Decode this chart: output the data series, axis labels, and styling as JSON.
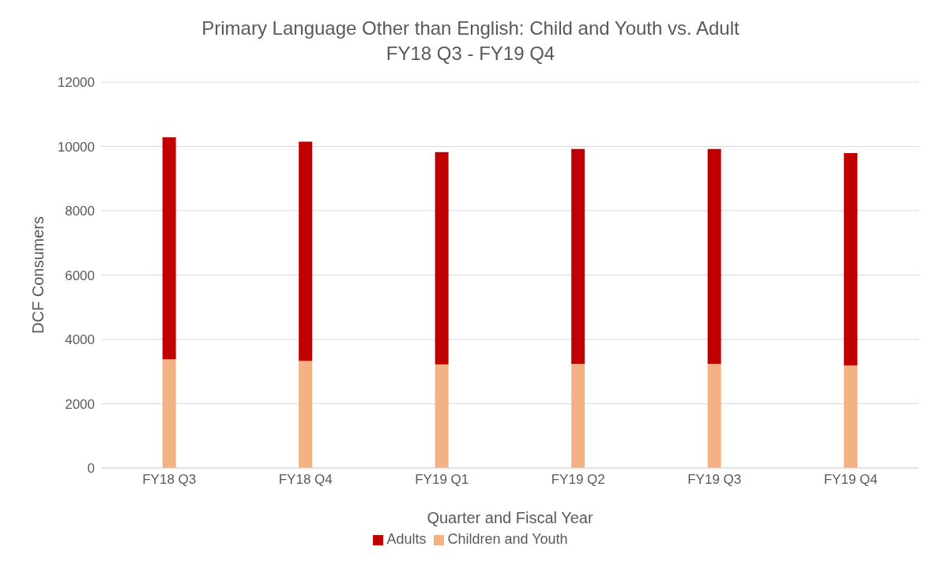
{
  "chart_data": {
    "type": "bar",
    "title": "Primary Language Other than English: Child and Youth vs. Adult",
    "subtitle": "FY18 Q3 - FY19 Q4",
    "xlabel": "Quarter and Fiscal Year",
    "ylabel": "DCF Consumers",
    "categories": [
      "FY18 Q3",
      "FY18 Q4",
      "FY19 Q1",
      "FY19 Q2",
      "FY19 Q3",
      "FY19 Q4"
    ],
    "series": [
      {
        "name": "Children and Youth",
        "color": "#f4b183",
        "values": [
          3380,
          3330,
          3220,
          3240,
          3240,
          3190
        ]
      },
      {
        "name": "Adults",
        "color": "#c00000",
        "values": [
          6900,
          6820,
          6600,
          6680,
          6680,
          6600
        ]
      }
    ],
    "stacked": true,
    "ylim": [
      0,
      12000
    ],
    "yticks": [
      0,
      2000,
      4000,
      6000,
      8000,
      10000,
      12000
    ],
    "grid": "y",
    "legend": "bottom"
  }
}
